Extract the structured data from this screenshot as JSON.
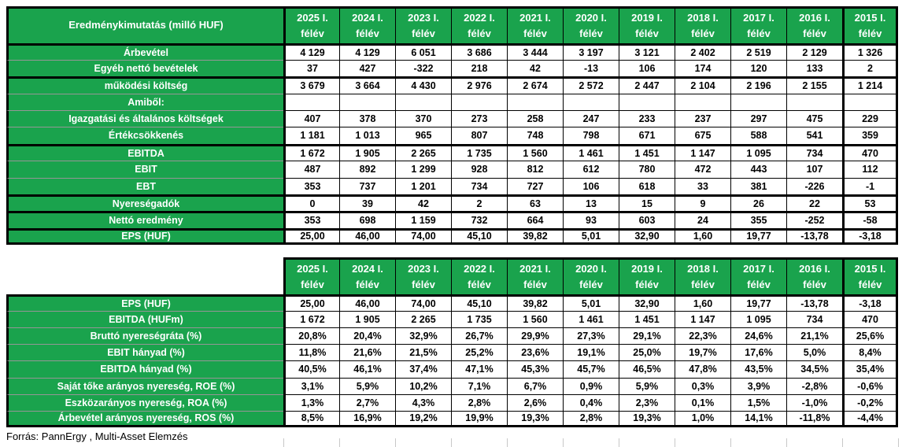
{
  "colors": {
    "green": "#1aa34d",
    "thick_border": "#000000",
    "thin_border": "#000000",
    "label_separator": "#969696",
    "tick": "#c8c8c8"
  },
  "columns": [
    {
      "y": "2025 I.",
      "p": "félév"
    },
    {
      "y": "2024 I.",
      "p": "félév"
    },
    {
      "y": "2023 I.",
      "p": "félév"
    },
    {
      "y": "2022 I.",
      "p": "félév"
    },
    {
      "y": "2021 I.",
      "p": "félév"
    },
    {
      "y": "2020 I.",
      "p": "félév"
    },
    {
      "y": "2019 I.",
      "p": "félév"
    },
    {
      "y": "2018 I.",
      "p": "félév"
    },
    {
      "y": "2017 I.",
      "p": "félév"
    },
    {
      "y": "2016 I.",
      "p": "félév"
    },
    {
      "y": "2015 I.",
      "p": "félév"
    }
  ],
  "table1": {
    "title": "Eredménykimutatás (milló HUF)",
    "rows": [
      {
        "label": "Árbevétel",
        "thick": true,
        "values": [
          "4 129",
          "4 129",
          "6 051",
          "3 686",
          "3 444",
          "3 197",
          "3 121",
          "2 402",
          "2 519",
          "2 129",
          "1 326"
        ]
      },
      {
        "label": "Egyéb nettó bevételek",
        "thick": false,
        "values": [
          "37",
          "427",
          "-322",
          "218",
          "42",
          "-13",
          "106",
          "174",
          "120",
          "133",
          "2"
        ]
      },
      {
        "label": "működési költség",
        "thick": true,
        "values": [
          "3 679",
          "3 664",
          "4 430",
          "2 976",
          "2 674",
          "2 572",
          "2 447",
          "2 104",
          "2 196",
          "2 155",
          "1 214"
        ]
      },
      {
        "label": "Amiből:",
        "thick": false,
        "values": [
          "",
          "",
          "",
          "",
          "",
          "",
          "",
          "",
          "",
          "",
          ""
        ]
      },
      {
        "label": "Igazgatási és általános költségek",
        "thick": false,
        "values": [
          "407",
          "378",
          "370",
          "273",
          "258",
          "247",
          "233",
          "237",
          "297",
          "475",
          "229"
        ]
      },
      {
        "label": "Értékcsökkenés",
        "thick": false,
        "values": [
          "1 181",
          "1 013",
          "965",
          "807",
          "748",
          "798",
          "671",
          "675",
          "588",
          "541",
          "359"
        ]
      },
      {
        "label": "EBITDA",
        "thick": true,
        "values": [
          "1 672",
          "1 905",
          "2 265",
          "1 735",
          "1 560",
          "1 461",
          "1 451",
          "1 147",
          "1 095",
          "734",
          "470"
        ]
      },
      {
        "label": "EBIT",
        "thick": false,
        "values": [
          "487",
          "892",
          "1 299",
          "928",
          "812",
          "612",
          "780",
          "472",
          "443",
          "107",
          "112"
        ]
      },
      {
        "label": "EBT",
        "thick": false,
        "values": [
          "353",
          "737",
          "1 201",
          "734",
          "727",
          "106",
          "618",
          "33",
          "381",
          "-226",
          "-1"
        ]
      },
      {
        "label": "Nyereségadók",
        "thick": true,
        "values": [
          "0",
          "39",
          "42",
          "2",
          "63",
          "13",
          "15",
          "9",
          "26",
          "22",
          "53"
        ]
      },
      {
        "label": "Nettó eredmény",
        "thick": true,
        "values": [
          "353",
          "698",
          "1 159",
          "732",
          "664",
          "93",
          "603",
          "24",
          "355",
          "-252",
          "-58"
        ]
      },
      {
        "label": "EPS (HUF)",
        "thick": true,
        "values": [
          "25,00",
          "46,00",
          "74,00",
          "45,10",
          "39,82",
          "5,01",
          "32,90",
          "1,60",
          "19,77",
          "-13,78",
          "-3,18"
        ]
      }
    ]
  },
  "table2": {
    "rows": [
      {
        "label": "EPS (HUF)",
        "thick": true,
        "values": [
          "25,00",
          "46,00",
          "74,00",
          "45,10",
          "39,82",
          "5,01",
          "32,90",
          "1,60",
          "19,77",
          "-13,78",
          "-3,18"
        ]
      },
      {
        "label": "EBITDA (HUFm)",
        "thick": false,
        "values": [
          "1 672",
          "1 905",
          "2 265",
          "1 735",
          "1 560",
          "1 461",
          "1 451",
          "1 147",
          "1 095",
          "734",
          "470"
        ]
      },
      {
        "label": "Bruttó nyereségráta (%)",
        "thick": false,
        "values": [
          "20,8%",
          "20,4%",
          "32,9%",
          "26,7%",
          "29,9%",
          "27,3%",
          "29,1%",
          "22,3%",
          "24,6%",
          "21,1%",
          "25,6%"
        ]
      },
      {
        "label": "EBIT hányad (%)",
        "thick": false,
        "values": [
          "11,8%",
          "21,6%",
          "21,5%",
          "25,2%",
          "23,6%",
          "19,1%",
          "25,0%",
          "19,7%",
          "17,6%",
          "5,0%",
          "8,4%"
        ]
      },
      {
        "label": "EBITDA hányad (%)",
        "thick": false,
        "values": [
          "40,5%",
          "46,1%",
          "37,4%",
          "47,1%",
          "45,3%",
          "45,7%",
          "46,5%",
          "47,8%",
          "43,5%",
          "34,5%",
          "35,4%"
        ]
      },
      {
        "label": "Saját tőke arányos nyereség, ROE (%)",
        "thick": false,
        "values": [
          "3,1%",
          "5,9%",
          "10,2%",
          "7,1%",
          "6,7%",
          "0,9%",
          "5,9%",
          "0,3%",
          "3,9%",
          "-2,8%",
          "-0,6%"
        ]
      },
      {
        "label": "Eszközarányos nyereség, ROA (%)",
        "thick": false,
        "values": [
          "1,3%",
          "2,7%",
          "4,3%",
          "2,8%",
          "2,6%",
          "0,4%",
          "2,3%",
          "0,1%",
          "1,5%",
          "-1,0%",
          "-0,2%"
        ]
      },
      {
        "label": "Árbevétel arányos nyereség, ROS (%)",
        "thick": false,
        "values": [
          "8,5%",
          "16,9%",
          "19,2%",
          "19,9%",
          "19,3%",
          "2,8%",
          "19,3%",
          "1,0%",
          "14,1%",
          "-11,8%",
          "-4,4%"
        ]
      }
    ]
  },
  "footer": {
    "source": "Forrás: PannErgy , Multi-Asset Elemzés"
  },
  "chart_data": [
    {
      "type": "table",
      "title": "Eredménykimutatás (milló HUF)",
      "columns": [
        "2025 I. félév",
        "2024 I. félév",
        "2023 I. félév",
        "2022 I. félév",
        "2021 I. félév",
        "2020 I. félév",
        "2019 I. félév",
        "2018 I. félév",
        "2017 I. félév",
        "2016 I. félév",
        "2015 I. félév"
      ],
      "rows": [
        {
          "label": "Árbevétel",
          "values": [
            4129,
            4129,
            6051,
            3686,
            3444,
            3197,
            3121,
            2402,
            2519,
            2129,
            1326
          ]
        },
        {
          "label": "Egyéb nettó bevételek",
          "values": [
            37,
            427,
            -322,
            218,
            42,
            -13,
            106,
            174,
            120,
            133,
            2
          ]
        },
        {
          "label": "működési költség",
          "values": [
            3679,
            3664,
            4430,
            2976,
            2674,
            2572,
            2447,
            2104,
            2196,
            2155,
            1214
          ]
        },
        {
          "label": "Amiből:",
          "values": [
            null,
            null,
            null,
            null,
            null,
            null,
            null,
            null,
            null,
            null,
            null
          ]
        },
        {
          "label": "Igazgatási és általános költségek",
          "values": [
            407,
            378,
            370,
            273,
            258,
            247,
            233,
            237,
            297,
            475,
            229
          ]
        },
        {
          "label": "Értékcsökkenés",
          "values": [
            1181,
            1013,
            965,
            807,
            748,
            798,
            671,
            675,
            588,
            541,
            359
          ]
        },
        {
          "label": "EBITDA",
          "values": [
            1672,
            1905,
            2265,
            1735,
            1560,
            1461,
            1451,
            1147,
            1095,
            734,
            470
          ]
        },
        {
          "label": "EBIT",
          "values": [
            487,
            892,
            1299,
            928,
            812,
            612,
            780,
            472,
            443,
            107,
            112
          ]
        },
        {
          "label": "EBT",
          "values": [
            353,
            737,
            1201,
            734,
            727,
            106,
            618,
            33,
            381,
            -226,
            -1
          ]
        },
        {
          "label": "Nyereségadók",
          "values": [
            0,
            39,
            42,
            2,
            63,
            13,
            15,
            9,
            26,
            22,
            53
          ]
        },
        {
          "label": "Nettó eredmény",
          "values": [
            353,
            698,
            1159,
            732,
            664,
            93,
            603,
            24,
            355,
            -252,
            -58
          ]
        },
        {
          "label": "EPS (HUF)",
          "values": [
            25.0,
            46.0,
            74.0,
            45.1,
            39.82,
            5.01,
            32.9,
            1.6,
            19.77,
            -13.78,
            -3.18
          ]
        }
      ]
    },
    {
      "type": "table",
      "title": "",
      "columns": [
        "2025 I. félév",
        "2024 I. félév",
        "2023 I. félév",
        "2022 I. félév",
        "2021 I. félév",
        "2020 I. félév",
        "2019 I. félév",
        "2018 I. félév",
        "2017 I. félév",
        "2016 I. félév",
        "2015 I. félév"
      ],
      "rows": [
        {
          "label": "EPS (HUF)",
          "values": [
            25.0,
            46.0,
            74.0,
            45.1,
            39.82,
            5.01,
            32.9,
            1.6,
            19.77,
            -13.78,
            -3.18
          ]
        },
        {
          "label": "EBITDA (HUFm)",
          "values": [
            1672,
            1905,
            2265,
            1735,
            1560,
            1461,
            1451,
            1147,
            1095,
            734,
            470
          ]
        },
        {
          "label": "Bruttó nyereségráta (%)",
          "values": [
            20.8,
            20.4,
            32.9,
            26.7,
            29.9,
            27.3,
            29.1,
            22.3,
            24.6,
            21.1,
            25.6
          ]
        },
        {
          "label": "EBIT hányad (%)",
          "values": [
            11.8,
            21.6,
            21.5,
            25.2,
            23.6,
            19.1,
            25.0,
            19.7,
            17.6,
            5.0,
            8.4
          ]
        },
        {
          "label": "EBITDA hányad (%)",
          "values": [
            40.5,
            46.1,
            37.4,
            47.1,
            45.3,
            45.7,
            46.5,
            47.8,
            43.5,
            34.5,
            35.4
          ]
        },
        {
          "label": "Saját tőke arányos nyereség, ROE (%)",
          "values": [
            3.1,
            5.9,
            10.2,
            7.1,
            6.7,
            0.9,
            5.9,
            0.3,
            3.9,
            -2.8,
            -0.6
          ]
        },
        {
          "label": "Eszközarányos nyereség, ROA (%)",
          "values": [
            1.3,
            2.7,
            4.3,
            2.8,
            2.6,
            0.4,
            2.3,
            0.1,
            1.5,
            -1.0,
            -0.2
          ]
        },
        {
          "label": "Árbevétel arányos nyereség, ROS (%)",
          "values": [
            8.5,
            16.9,
            19.2,
            19.9,
            19.3,
            2.8,
            19.3,
            1.0,
            14.1,
            -11.8,
            -4.4
          ]
        }
      ]
    }
  ]
}
